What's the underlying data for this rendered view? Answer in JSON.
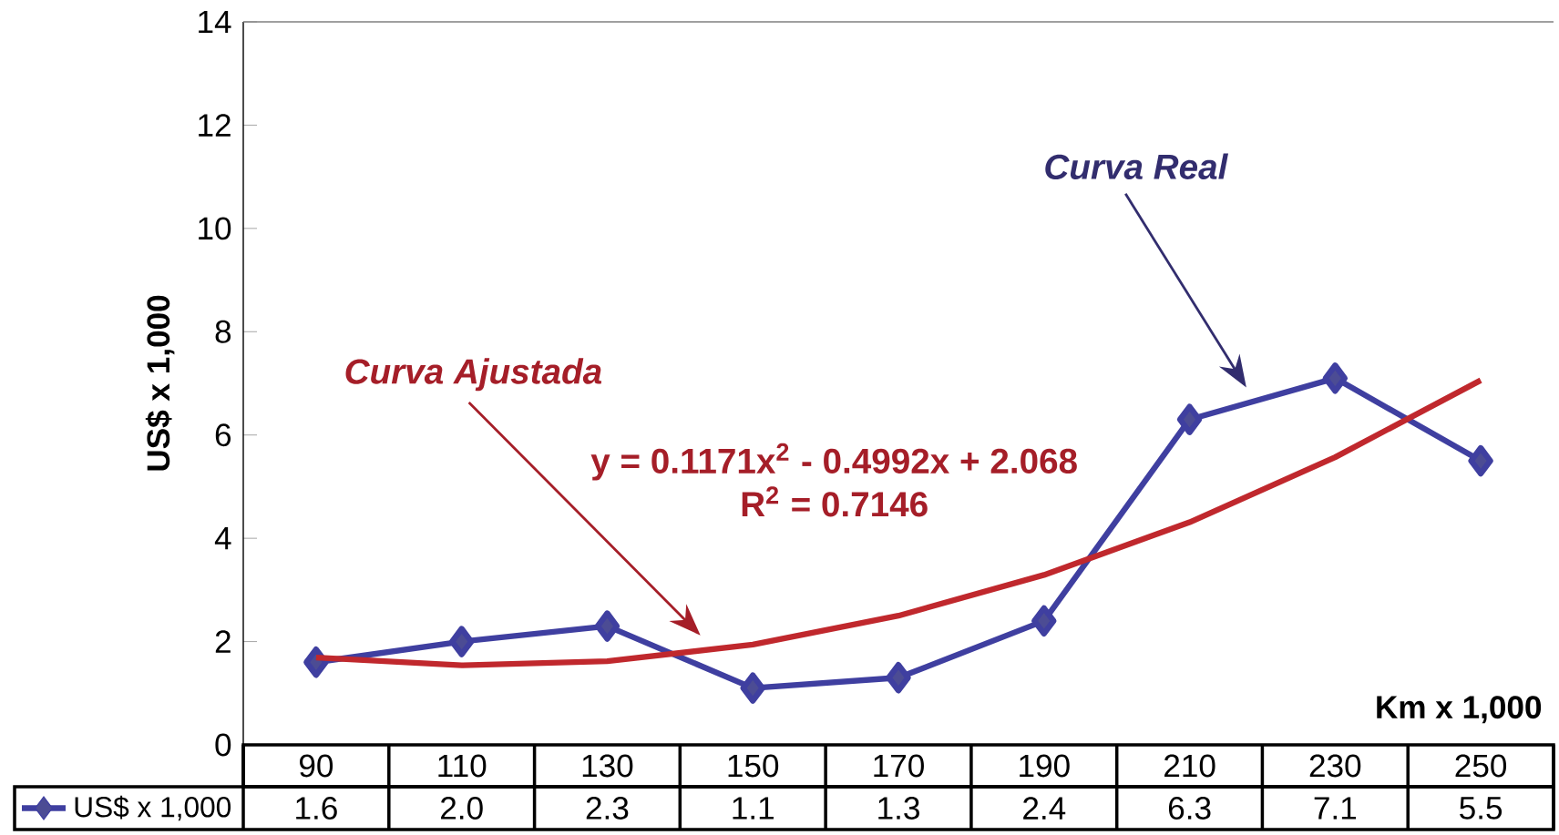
{
  "chart_data": {
    "type": "line",
    "ylabel": "US$ x 1,000",
    "xlabel": "Km x 1,000",
    "categories": [
      "90",
      "110",
      "130",
      "150",
      "170",
      "190",
      "210",
      "230",
      "250"
    ],
    "ylim": [
      0,
      14
    ],
    "yticks": [
      0,
      2,
      4,
      6,
      8,
      10,
      12,
      14
    ],
    "legend": "bottom",
    "grid": false,
    "series": [
      {
        "name": "US$ x 1,000",
        "color": "#3f3fa0",
        "marker": "diamond",
        "values": [
          1.6,
          2.0,
          2.3,
          1.1,
          1.3,
          2.4,
          6.3,
          7.1,
          5.5
        ],
        "value_labels": [
          "1.6",
          "2.0",
          "2.3",
          "1.1",
          "1.3",
          "2.4",
          "6.3",
          "7.1",
          "5.5"
        ]
      },
      {
        "type": "line",
        "color": "#c0282d",
        "marker": "none",
        "values": [
          1.69,
          1.54,
          1.62,
          1.94,
          2.5,
          3.29,
          4.31,
          5.57,
          7.06
        ]
      }
    ],
    "annotations": [
      "Curva Ajustada",
      "Curva Real",
      "y = 0.1171x$^{2}$ - 0.4992x + 2.068",
      "R$^{2}$ = 0.7146"
    ]
  }
}
